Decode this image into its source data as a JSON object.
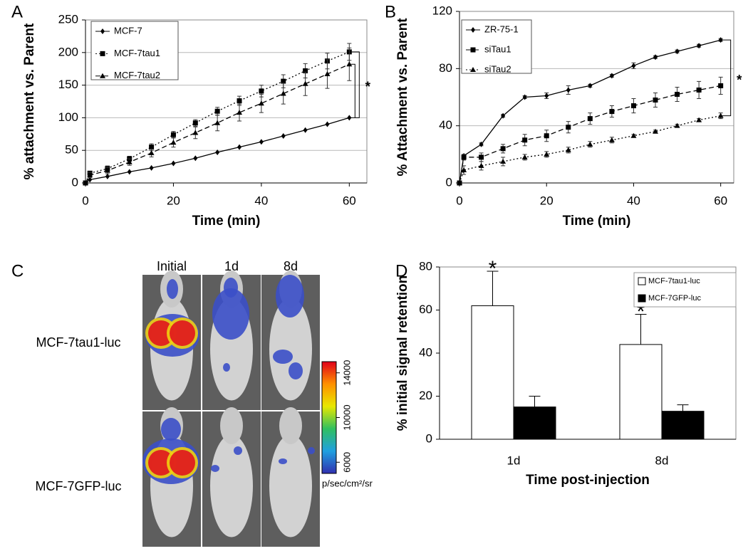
{
  "chart_data": [
    {
      "type": "line",
      "panel": "A",
      "ylabel": "% attachment vs. Parent",
      "xlabel": "Time (min)",
      "x": [
        0,
        1,
        5,
        10,
        15,
        20,
        25,
        30,
        35,
        40,
        45,
        50,
        55,
        60
      ],
      "xlim": [
        0,
        64
      ],
      "xticks": [
        0,
        20,
        40,
        60
      ],
      "ylim": [
        0,
        250
      ],
      "yticks": [
        0,
        50,
        100,
        150,
        200,
        250
      ],
      "grid": true,
      "annotation": "*",
      "series": [
        {
          "name": "MCF-7",
          "color": "#000000",
          "line_style": "solid",
          "marker": "diamond",
          "values": [
            0,
            5,
            10,
            17,
            23,
            30,
            38,
            47,
            55,
            63,
            72,
            81,
            90,
            100
          ]
        },
        {
          "name": "MCF-7tau1",
          "color": "#000000",
          "line_style": "dotted",
          "marker": "square",
          "values": [
            0,
            15,
            22,
            37,
            55,
            74,
            92,
            110,
            126,
            141,
            156,
            172,
            187,
            201
          ],
          "errors": [
            0,
            3,
            4,
            4,
            5,
            5,
            5,
            6,
            7,
            9,
            10,
            11,
            12,
            13
          ]
        },
        {
          "name": "MCF-7tau2",
          "color": "#000000",
          "line_style": "dashed",
          "marker": "triangle",
          "values": [
            0,
            12,
            19,
            32,
            46,
            62,
            77,
            92,
            108,
            122,
            137,
            152,
            167,
            182
          ],
          "errors": [
            0,
            4,
            5,
            5,
            6,
            7,
            9,
            12,
            13,
            14,
            16,
            18,
            22,
            25
          ]
        }
      ]
    },
    {
      "type": "line",
      "panel": "B",
      "ylabel": "% Attachment vs. Parent",
      "xlabel": "Time (min)",
      "x": [
        0,
        1,
        5,
        10,
        15,
        20,
        25,
        30,
        35,
        40,
        45,
        50,
        55,
        60
      ],
      "xlim": [
        0,
        63
      ],
      "xticks": [
        0,
        20,
        40,
        60
      ],
      "ylim": [
        0,
        120
      ],
      "yticks": [
        0,
        40,
        80,
        120
      ],
      "grid": true,
      "annotation": "*",
      "series": [
        {
          "name": "ZR-75-1",
          "color": "#000000",
          "line_style": "solid",
          "marker": "diamond",
          "values": [
            0,
            19,
            27,
            47,
            60,
            61,
            65,
            68,
            75,
            82,
            88,
            92,
            96,
            100
          ],
          "errors": [
            0,
            1,
            1,
            1,
            1,
            2,
            3,
            1,
            1,
            2,
            1,
            1,
            1,
            1
          ]
        },
        {
          "name": "siTau1",
          "color": "#000000",
          "line_style": "dashed",
          "marker": "square",
          "values": [
            0,
            18,
            18,
            24,
            30,
            33,
            39,
            45,
            50,
            54,
            58,
            62,
            65,
            68
          ],
          "errors": [
            0,
            2,
            3,
            3,
            4,
            4,
            4,
            4,
            4,
            5,
            5,
            5,
            6,
            6
          ]
        },
        {
          "name": "siTau2",
          "color": "#000000",
          "line_style": "dotted",
          "marker": "triangle",
          "values": [
            0,
            9,
            12,
            15,
            18,
            20,
            23,
            27,
            30,
            33,
            36,
            40,
            44,
            47
          ],
          "errors": [
            0,
            3,
            3,
            3,
            2,
            2,
            2,
            2,
            2,
            1,
            1,
            1,
            1,
            2
          ]
        }
      ]
    },
    {
      "type": "bar",
      "panel": "D",
      "ylabel": "% initial signal retention",
      "xlabel": "Time post-injection",
      "categories": [
        "1d",
        "8d"
      ],
      "ylim": [
        0,
        80
      ],
      "yticks": [
        0,
        20,
        40,
        60,
        80
      ],
      "grid": false,
      "annotation": "*",
      "series": [
        {
          "name": "MCF-7tau1-luc",
          "color": "#ffffff",
          "values": [
            62,
            44
          ],
          "errors": [
            16,
            14
          ]
        },
        {
          "name": "MCF-7GFP-luc",
          "color": "#000000",
          "values": [
            15,
            13
          ],
          "errors": [
            5,
            3
          ]
        }
      ]
    }
  ],
  "panel_c": {
    "panel": "C",
    "columns": [
      "Initial",
      "1d",
      "8d"
    ],
    "rows": [
      "MCF-7tau1-luc",
      "MCF-7GFP-luc"
    ],
    "colorbar_ticks": [
      14000,
      10000,
      6000
    ],
    "colorbar_lim": [
      5000,
      15000
    ],
    "colorbar_unit": "p/sec/cm²/sr"
  }
}
